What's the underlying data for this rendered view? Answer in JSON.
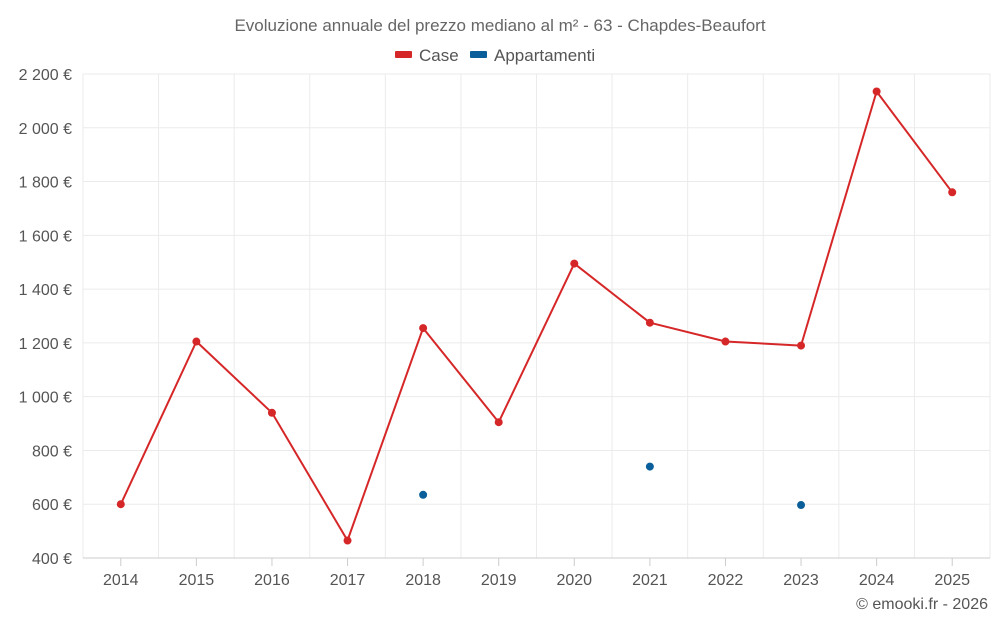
{
  "chart_data": {
    "type": "line",
    "title": "Evoluzione annuale del prezzo mediano al m² - 63 - Chapdes-Beaufort",
    "categories": [
      "2014",
      "2015",
      "2016",
      "2017",
      "2018",
      "2019",
      "2020",
      "2021",
      "2022",
      "2023",
      "2024",
      "2025"
    ],
    "series": [
      {
        "name": "Case",
        "color": "#d62728",
        "style": "line-markers",
        "values": [
          600,
          1205,
          940,
          465,
          1255,
          905,
          1495,
          1275,
          1205,
          1190,
          2135,
          1760
        ]
      },
      {
        "name": "Appartamenti",
        "color": "#0a5f9a",
        "style": "markers",
        "values": [
          null,
          null,
          null,
          null,
          635,
          null,
          null,
          740,
          null,
          597,
          null,
          null
        ]
      }
    ],
    "ylim": [
      400,
      2200
    ],
    "yticks": [
      400,
      600,
      800,
      1000,
      1200,
      1400,
      1600,
      1800,
      2000,
      2200
    ],
    "ytick_labels": [
      "400 €",
      "600 €",
      "800 €",
      "1 000 €",
      "1 200 €",
      "1 400 €",
      "1 600 €",
      "1 800 €",
      "2 000 €",
      "2 200 €"
    ],
    "xlabel": "",
    "ylabel": "",
    "grid": true,
    "legend_position": "top-center",
    "credit": "© emooki.fr - 2026"
  }
}
